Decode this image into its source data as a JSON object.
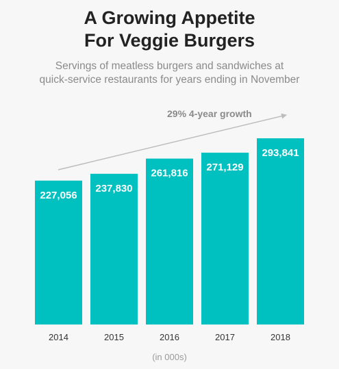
{
  "chart_data": {
    "type": "bar",
    "title_line1": "A Growing Appetite",
    "title_line2": "For Veggie Burgers",
    "subtitle_line1": "Servings of meatless burgers and sandwiches at",
    "subtitle_line2": "quick-service restaurants for years ending in November",
    "annotation": "29% 4-year growth",
    "unit_note": "(in 000s)",
    "categories": [
      "2014",
      "2015",
      "2016",
      "2017",
      "2018"
    ],
    "values": [
      227056,
      237830,
      261816,
      271129,
      293841
    ],
    "value_labels": [
      "227,056",
      "237,830",
      "261,816",
      "271,129",
      "293,841"
    ],
    "bar_color": "#00c0c0",
    "ylim": [
      0,
      300000
    ]
  }
}
